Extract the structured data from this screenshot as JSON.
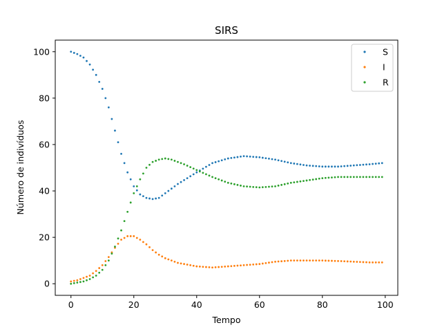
{
  "chart_data": {
    "type": "scatter",
    "title": "SIRS",
    "xlabel": "Tempo",
    "ylabel": "Número de indivíduos",
    "xlim": [
      -5,
      104
    ],
    "ylim": [
      -5,
      105
    ],
    "xticks": [
      0,
      20,
      40,
      60,
      80,
      100
    ],
    "yticks": [
      0,
      20,
      40,
      60,
      80,
      100
    ],
    "legend_position": "top-right",
    "grid": false,
    "series": [
      {
        "name": "S",
        "color": "#1f77b4",
        "keypoints": [
          [
            0,
            100
          ],
          [
            2,
            99
          ],
          [
            4,
            97.5
          ],
          [
            6,
            94.5
          ],
          [
            8,
            90
          ],
          [
            10,
            84
          ],
          [
            12,
            76
          ],
          [
            14,
            66
          ],
          [
            16,
            56
          ],
          [
            18,
            48
          ],
          [
            20,
            42
          ],
          [
            22,
            38.5
          ],
          [
            24,
            37
          ],
          [
            26,
            36.5
          ],
          [
            28,
            37
          ],
          [
            30,
            39
          ],
          [
            34,
            43
          ],
          [
            40,
            48
          ],
          [
            45,
            52
          ],
          [
            50,
            54
          ],
          [
            55,
            55
          ],
          [
            60,
            54.5
          ],
          [
            65,
            53.5
          ],
          [
            70,
            52
          ],
          [
            75,
            51
          ],
          [
            80,
            50.5
          ],
          [
            85,
            50.5
          ],
          [
            90,
            51
          ],
          [
            95,
            51.5
          ],
          [
            99,
            52
          ]
        ]
      },
      {
        "name": "I",
        "color": "#ff7f0e",
        "keypoints": [
          [
            0,
            1
          ],
          [
            2,
            1.5
          ],
          [
            4,
            2.5
          ],
          [
            6,
            3.5
          ],
          [
            8,
            5.5
          ],
          [
            10,
            8
          ],
          [
            12,
            11.5
          ],
          [
            14,
            15.5
          ],
          [
            16,
            19
          ],
          [
            18,
            20.5
          ],
          [
            20,
            20.5
          ],
          [
            22,
            19
          ],
          [
            24,
            17
          ],
          [
            26,
            14.5
          ],
          [
            28,
            12.5
          ],
          [
            30,
            11
          ],
          [
            34,
            9
          ],
          [
            40,
            7.5
          ],
          [
            45,
            7
          ],
          [
            50,
            7.5
          ],
          [
            55,
            8
          ],
          [
            60,
            8.5
          ],
          [
            65,
            9.5
          ],
          [
            70,
            10
          ],
          [
            75,
            10
          ],
          [
            80,
            10
          ],
          [
            85,
            9.8
          ],
          [
            90,
            9.5
          ],
          [
            95,
            9.2
          ],
          [
            99,
            9.2
          ]
        ]
      },
      {
        "name": "R",
        "color": "#2ca02c",
        "keypoints": [
          [
            0,
            0
          ],
          [
            2,
            0.5
          ],
          [
            4,
            1
          ],
          [
            6,
            2
          ],
          [
            8,
            3.5
          ],
          [
            10,
            6
          ],
          [
            12,
            10
          ],
          [
            14,
            16
          ],
          [
            16,
            23
          ],
          [
            18,
            31
          ],
          [
            20,
            39
          ],
          [
            22,
            45
          ],
          [
            24,
            50
          ],
          [
            26,
            52.5
          ],
          [
            28,
            53.5
          ],
          [
            30,
            54
          ],
          [
            32,
            53.5
          ],
          [
            36,
            51.5
          ],
          [
            40,
            49
          ],
          [
            45,
            46
          ],
          [
            50,
            43.5
          ],
          [
            55,
            42
          ],
          [
            60,
            41.5
          ],
          [
            65,
            42
          ],
          [
            70,
            43.5
          ],
          [
            75,
            44.5
          ],
          [
            80,
            45.5
          ],
          [
            85,
            46
          ],
          [
            90,
            46
          ],
          [
            95,
            46
          ],
          [
            99,
            46
          ]
        ]
      }
    ],
    "n_points": 100
  }
}
